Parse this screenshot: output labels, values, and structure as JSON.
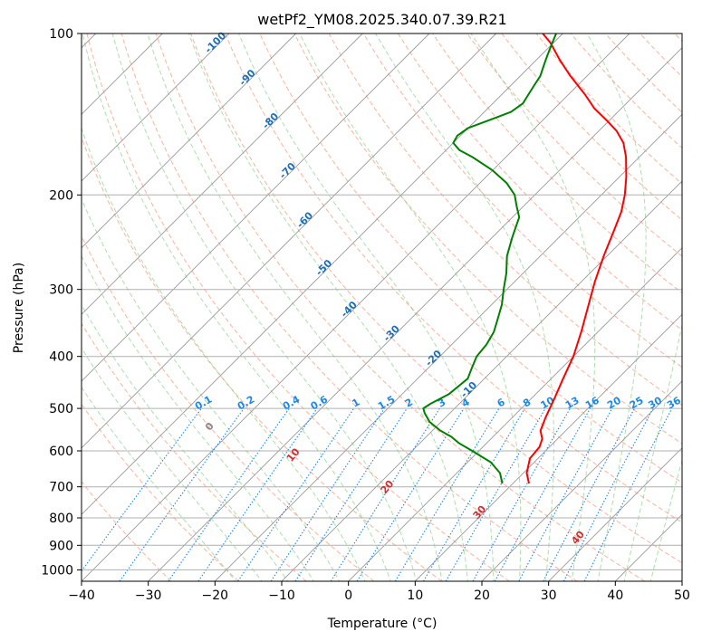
{
  "chart_data": {
    "type": "line",
    "subtype": "skew-t log-p sounding",
    "title": "wetPf2_YM08.2025.340.07.39.R21",
    "xlabel": "Temperature (°C)",
    "ylabel": "Pressure (hPa)",
    "xlim": [
      -40,
      50
    ],
    "ylim_hpa": [
      1050,
      100
    ],
    "x_ticks": [
      -40,
      -30,
      -20,
      -10,
      0,
      10,
      20,
      30,
      40,
      50
    ],
    "y_ticks": [
      1000,
      900,
      800,
      700,
      600,
      500,
      400,
      300,
      200,
      100
    ],
    "y_tick_labels": [
      "1000",
      "900",
      "800",
      "700",
      "600",
      "500",
      "400",
      "300",
      "200",
      "100"
    ],
    "grid": true,
    "colors": {
      "temperature": "#ff0000",
      "dewpoint": "#008000",
      "isotherm": "#999999",
      "dry_adiabat": "#fa8b6a",
      "moist_adiabat": "#6ac46a",
      "mixing_ratio": "#1e88e5",
      "isotherm_label": "#1f6fb5",
      "theta_label": "#d32f2f"
    },
    "series": [
      {
        "name": "Temperature",
        "pressure": [
          690,
          660,
          620,
          590,
          570,
          550,
          520,
          480,
          440,
          400,
          360,
          320,
          290,
          260,
          235,
          215,
          200,
          185,
          170,
          160,
          152,
          145,
          138,
          130,
          120,
          112,
          104,
          100
        ],
        "values": [
          12.4,
          10.5,
          8.8,
          8.5,
          7.7,
          6.2,
          5.0,
          3.5,
          1.8,
          0.0,
          -2.5,
          -5.5,
          -8.0,
          -10.5,
          -12.6,
          -14.5,
          -16.5,
          -19.0,
          -22.0,
          -24.5,
          -27.3,
          -30.5,
          -34.0,
          -37.5,
          -42.5,
          -46.5,
          -50.5,
          -53.0
        ]
      },
      {
        "name": "Dewpoint",
        "pressure": [
          690,
          660,
          630,
          600,
          580,
          565,
          550,
          530,
          510,
          500,
          490,
          470,
          440,
          420,
          400,
          380,
          360,
          340,
          320,
          300,
          280,
          260,
          240,
          220,
          210,
          200,
          190,
          180,
          170,
          165,
          160,
          155,
          150,
          145,
          140,
          135,
          130,
          125,
          120,
          115,
          110,
          105,
          100
        ],
        "values": [
          8.4,
          6.5,
          3.5,
          -1.0,
          -4.2,
          -6.2,
          -8.8,
          -11.7,
          -13.8,
          -14.7,
          -14.3,
          -13.0,
          -12.5,
          -13.5,
          -14.5,
          -14.8,
          -15.6,
          -17.0,
          -18.5,
          -20.5,
          -22.5,
          -25.0,
          -27.0,
          -29.0,
          -31.0,
          -33.0,
          -36.0,
          -40.0,
          -45.0,
          -48.0,
          -50.0,
          -50.5,
          -50.0,
          -48.0,
          -46.0,
          -45.5,
          -46.0,
          -46.5,
          -47.0,
          -48.0,
          -49.0,
          -50.0,
          -51.0
        ]
      }
    ],
    "isotherm_labels": [
      "-100",
      "-90",
      "-80",
      "-70",
      "-60",
      "-50",
      "-40",
      "-30",
      "-20",
      "-10"
    ],
    "isotherm_label_values": [
      -100,
      -90,
      -80,
      -70,
      -60,
      -50,
      -40,
      -30,
      -20,
      -10
    ],
    "mixing_ratio_labels": [
      "0.1",
      "0.2",
      "0.4",
      "0.6",
      "1",
      "1.5",
      "2",
      "3",
      "4",
      "6",
      "8",
      "10",
      "13",
      "16",
      "20",
      "25",
      "30",
      "36"
    ],
    "mixing_ratio_values": [
      0.1,
      0.2,
      0.4,
      0.6,
      1,
      1.5,
      2,
      3,
      4,
      6,
      8,
      10,
      13,
      16,
      20,
      25,
      30,
      36
    ],
    "theta_labels": [
      "0",
      "10",
      "20",
      "30",
      "40"
    ],
    "theta_label_values": [
      0,
      10,
      20,
      30,
      40
    ]
  }
}
